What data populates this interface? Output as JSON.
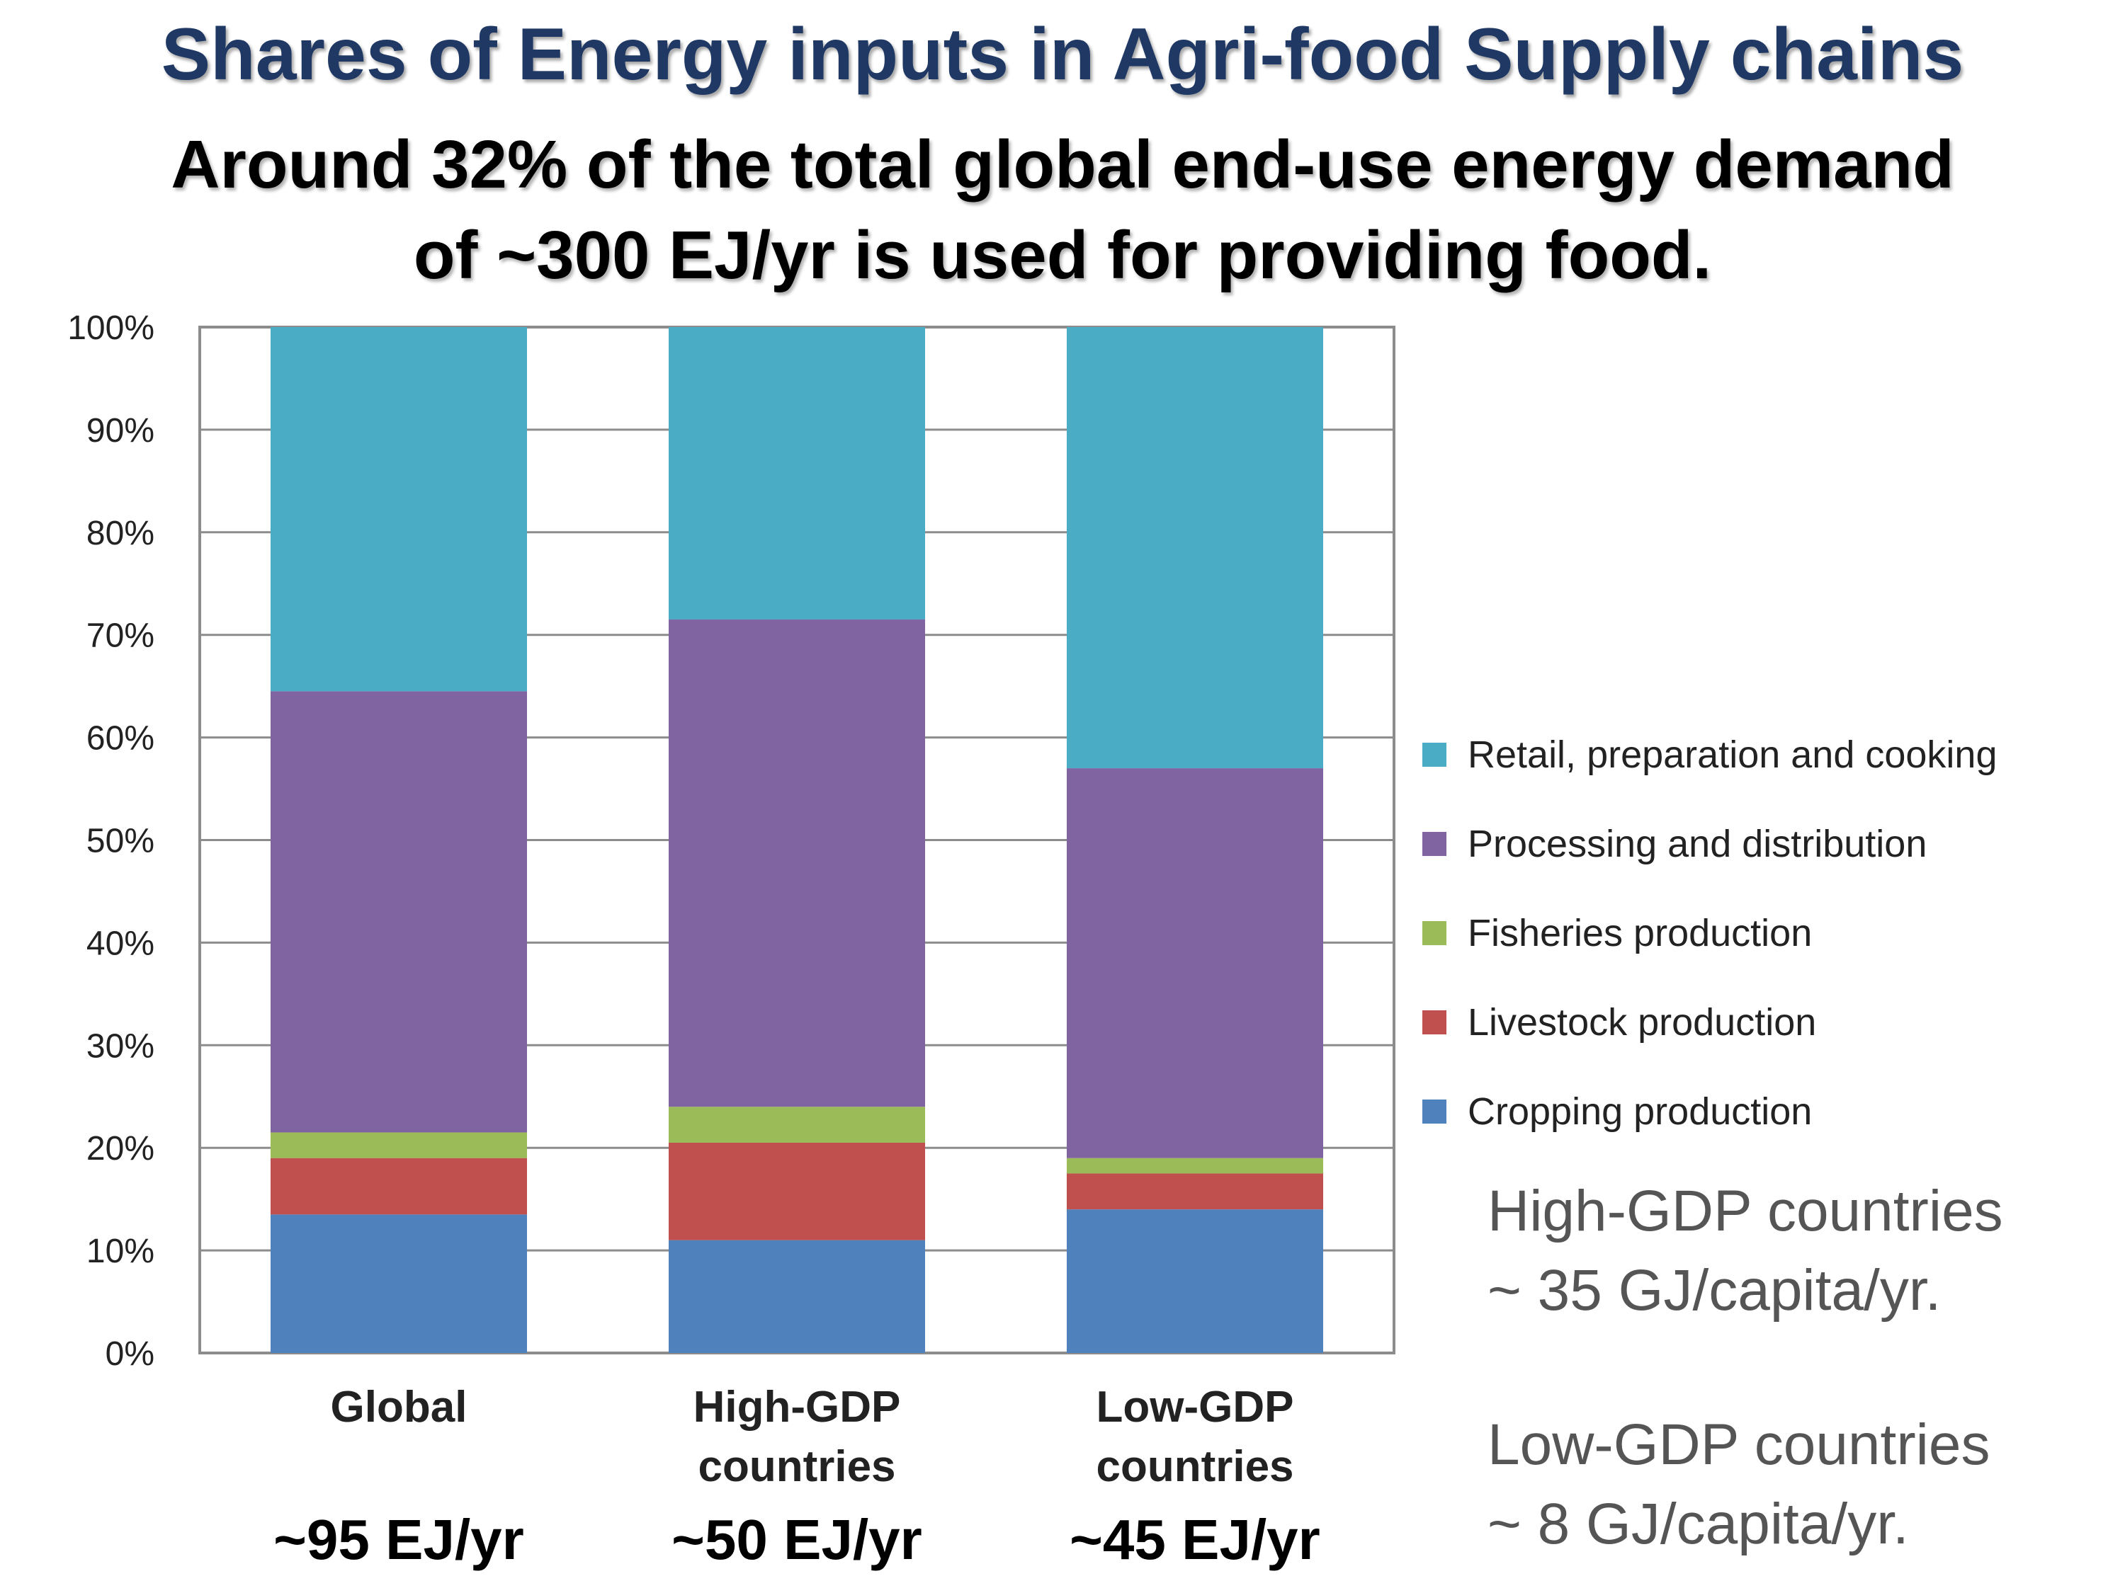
{
  "header": {
    "title": "Shares of Energy inputs in Agri-food Supply chains",
    "subtitle_line1": "Around 32% of the total global end-use energy demand",
    "subtitle_line2": "of ~300 EJ/yr  is used for providing food."
  },
  "chart_data": {
    "type": "bar",
    "stacked": true,
    "categories": [
      [
        "Global"
      ],
      [
        "High-GDP",
        "countries"
      ],
      [
        "Low-GDP",
        "countries"
      ]
    ],
    "category_totals": [
      "~95 EJ/yr",
      "~50 EJ/yr",
      "~45  EJ/yr"
    ],
    "series": [
      {
        "name": "Cropping production",
        "color": "#4f81bd",
        "values": [
          13.5,
          11,
          14
        ]
      },
      {
        "name": "Livestock production",
        "color": "#c0504d",
        "values": [
          5.5,
          9.5,
          3.5
        ]
      },
      {
        "name": "Fisheries production",
        "color": "#9bbb59",
        "values": [
          2.5,
          3.5,
          1.5
        ]
      },
      {
        "name": "Processing and distribution",
        "color": "#8064a2",
        "values": [
          43,
          47.5,
          38
        ]
      },
      {
        "name": "Retail, preparation and cooking",
        "color": "#4bacc6",
        "values": [
          35.5,
          28.5,
          43
        ]
      }
    ],
    "ylim": [
      0,
      100
    ],
    "yticks": [
      "0%",
      "10%",
      "20%",
      "30%",
      "40%",
      "50%",
      "60%",
      "70%",
      "80%",
      "90%",
      "100%"
    ],
    "grid": true,
    "legend_position": "right"
  },
  "notes": {
    "high_gdp_line1": "High-GDP countries",
    "high_gdp_line2": "~ 35 GJ/capita/yr.",
    "low_gdp_line1": "Low-GDP countries",
    "low_gdp_line2": "~ 8 GJ/capita/yr."
  }
}
